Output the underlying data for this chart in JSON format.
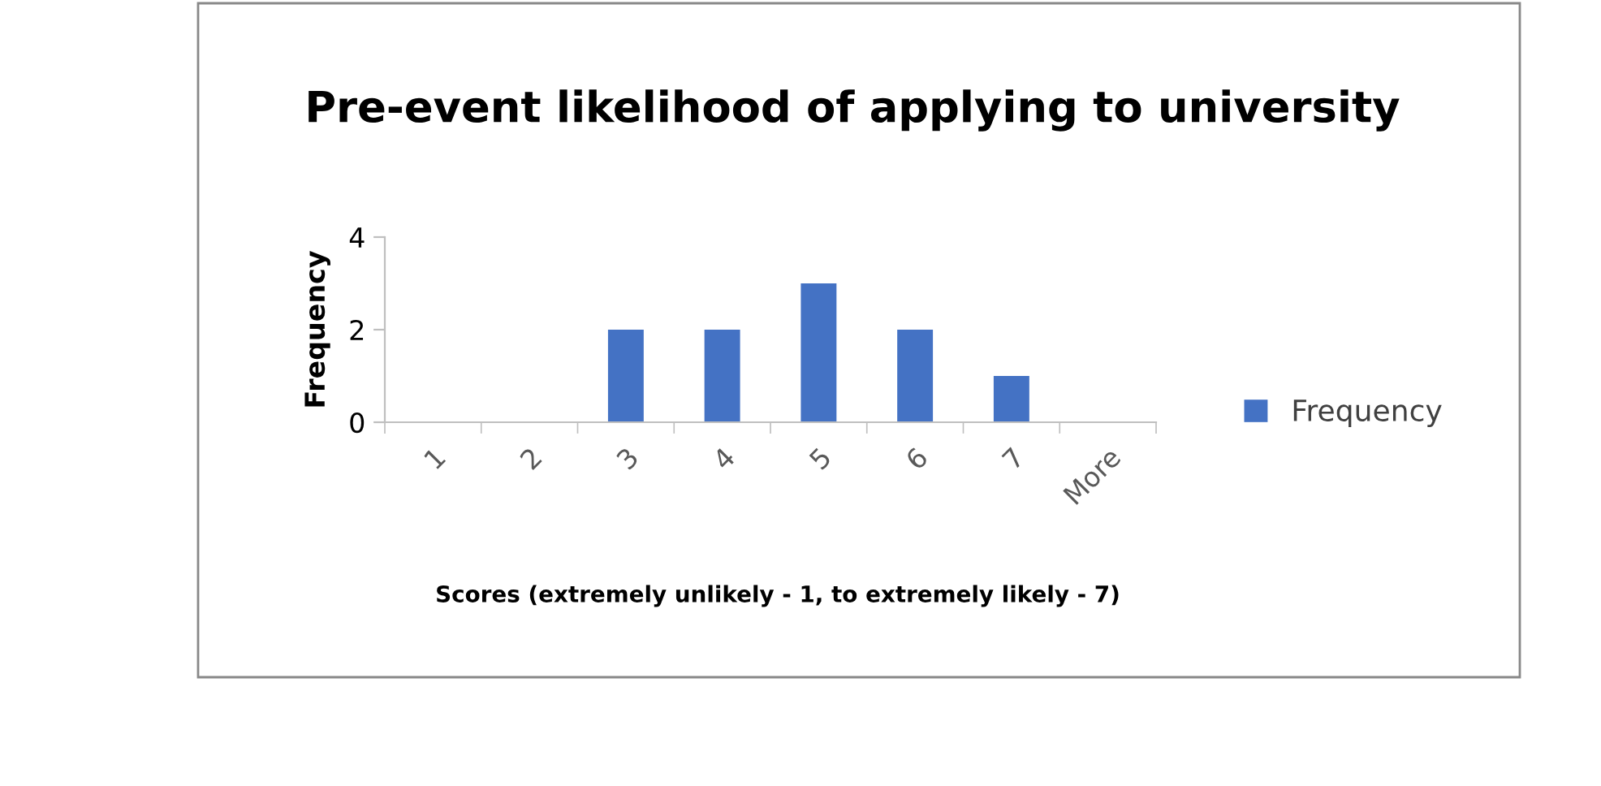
{
  "chart_data": {
    "type": "bar",
    "title": "Pre-event likelihood of applying to university",
    "xlabel": "Scores (extremely unlikely - 1, to extremely likely - 7)",
    "ylabel": "Frequency",
    "categories": [
      "1",
      "2",
      "3",
      "4",
      "5",
      "6",
      "7",
      "More"
    ],
    "series": [
      {
        "name": "Frequency",
        "color": "#4472c4",
        "values": [
          0,
          0,
          2,
          2,
          3,
          2,
          1,
          0
        ]
      }
    ],
    "ylim": [
      0,
      4
    ],
    "yticks": [
      0,
      2,
      4
    ],
    "grid": false,
    "legend": "right"
  }
}
